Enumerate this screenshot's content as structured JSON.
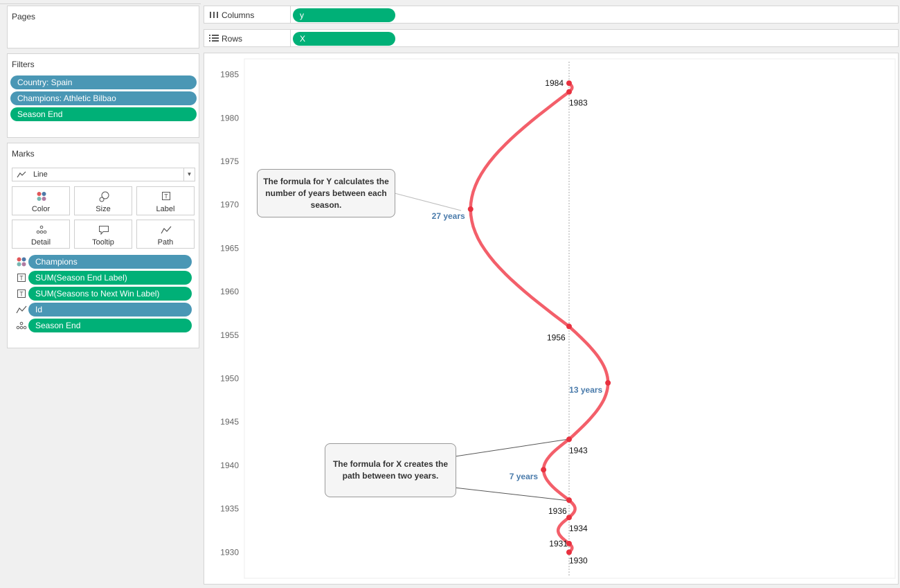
{
  "sidebar": {
    "pages": {
      "title": "Pages"
    },
    "filters": {
      "title": "Filters",
      "items": [
        {
          "label": "Country: Spain",
          "color": "#4a97b5"
        },
        {
          "label": "Champions: Athletic Bilbao",
          "color": "#4a97b5"
        },
        {
          "label": "Season End",
          "color": "#00b077"
        }
      ]
    },
    "marks": {
      "title": "Marks",
      "mark_type": "Line",
      "buttons": [
        {
          "label": "Color",
          "icon": "color-icon"
        },
        {
          "label": "Size",
          "icon": "size-icon"
        },
        {
          "label": "Label",
          "icon": "label-icon"
        },
        {
          "label": "Detail",
          "icon": "detail-icon"
        },
        {
          "label": "Tooltip",
          "icon": "tooltip-icon"
        },
        {
          "label": "Path",
          "icon": "path-icon"
        }
      ],
      "fields": [
        {
          "label": "Champions",
          "icon": "color-icon",
          "color": "#4a97b5"
        },
        {
          "label": "SUM(Season End Label)",
          "icon": "label-icon",
          "color": "#00b077"
        },
        {
          "label": "SUM(Seasons to Next Win Label)",
          "icon": "label-icon",
          "color": "#00b077"
        },
        {
          "label": "Id",
          "icon": "path-icon",
          "color": "#4a97b5"
        },
        {
          "label": "Season End",
          "icon": "detail-icon",
          "color": "#00b077"
        }
      ]
    }
  },
  "shelves": {
    "columns": {
      "label": "Columns",
      "pill": "y"
    },
    "rows": {
      "label": "Rows",
      "pill": "X"
    }
  },
  "chart_data": {
    "type": "line",
    "y_axis": {
      "ticks": [
        "1985",
        "1980",
        "1975",
        "1970",
        "1965",
        "1960",
        "1955",
        "1950",
        "1945",
        "1940",
        "1935",
        "1930"
      ],
      "range": [
        1927,
        1986.8
      ]
    },
    "line_color": "#f24e5a",
    "seasons": [
      1930,
      1931,
      1934,
      1936,
      1943,
      1956,
      1983,
      1984
    ],
    "point_labels": [
      "1930",
      "1931",
      "1934",
      "1936",
      "1943",
      "1956",
      "1983",
      "1984"
    ],
    "gap_labels": [
      {
        "text": "7 years",
        "year": 1939.5
      },
      {
        "text": "13 years",
        "year": 1949.5
      },
      {
        "text": "27 years",
        "year": 1969.5
      }
    ],
    "gap_label_color": "#4a7bab"
  },
  "annotations": {
    "y_formula": "The formula for Y calculates the number of years between each season.",
    "x_formula": "The formula for X creates the path between two years."
  }
}
